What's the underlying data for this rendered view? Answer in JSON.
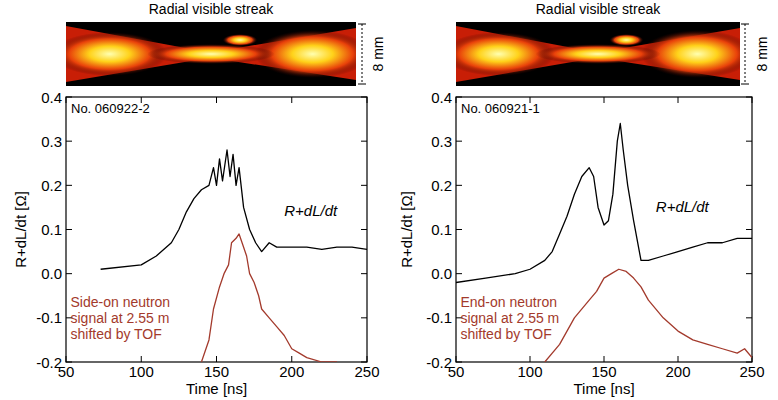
{
  "chart_data": [
    {
      "type": "line",
      "title": "Radial visible streak",
      "scale_label": "8 mm",
      "id_label": "No. 060922-2",
      "xlabel": "Time [ns]",
      "ylabel": "R+dL/dt [Ω]",
      "xlim": [
        50,
        250
      ],
      "ylim": [
        -0.2,
        0.4
      ],
      "xticks": [
        50,
        100,
        150,
        200,
        250
      ],
      "yticks": [
        -0.2,
        -0.1,
        {
          "value": 0,
          "label": "0.0"
        },
        0.1,
        0.2,
        0.3,
        0.4
      ],
      "series": [
        {
          "name": "R+dL/dt",
          "color": "#000000",
          "x": [
            73,
            100,
            110,
            120,
            125,
            130,
            135,
            140,
            145,
            148,
            150,
            152,
            154,
            157,
            159,
            161,
            163,
            165,
            168,
            172,
            176,
            180,
            185,
            190,
            200,
            210,
            220,
            230,
            240,
            250
          ],
          "values": [
            0.01,
            0.02,
            0.04,
            0.07,
            0.1,
            0.14,
            0.17,
            0.19,
            0.2,
            0.24,
            0.2,
            0.26,
            0.21,
            0.28,
            0.22,
            0.27,
            0.2,
            0.24,
            0.15,
            0.1,
            0.07,
            0.05,
            0.07,
            0.06,
            0.06,
            0.06,
            0.055,
            0.06,
            0.06,
            0.055
          ]
        },
        {
          "color": "#a33a2c",
          "x": [
            140,
            145,
            148,
            152,
            155,
            158,
            160,
            163,
            165,
            167,
            170,
            172,
            175,
            178,
            180,
            185,
            190,
            195,
            200,
            205,
            210,
            220,
            230
          ],
          "values": [
            -0.2,
            -0.15,
            -0.08,
            -0.03,
            0.0,
            0.02,
            0.07,
            0.08,
            0.09,
            0.07,
            0.04,
            0.0,
            -0.02,
            -0.05,
            -0.08,
            -0.1,
            -0.12,
            -0.14,
            -0.17,
            -0.18,
            -0.19,
            -0.2,
            -0.2
          ]
        }
      ],
      "annotations": [
        {
          "lines": [
            "Side-on neutron",
            "signal at 2.55 m",
            "shifted by TOF"
          ],
          "color": "#a33a2c"
        }
      ]
    },
    {
      "type": "line",
      "title": "Radial visible streak",
      "scale_label": "8 mm",
      "id_label": "No. 060921-1",
      "xlabel": "Time [ns]",
      "ylabel": "R+dL/dt [Ω]",
      "xlim": [
        50,
        250
      ],
      "ylim": [
        -0.2,
        0.4
      ],
      "xticks": [
        50,
        100,
        150,
        200,
        250
      ],
      "yticks": [
        -0.2,
        -0.1,
        {
          "value": 0,
          "label": "0.0"
        },
        0.1,
        0.2,
        0.3,
        0.4
      ],
      "series": [
        {
          "name": "R+dL/dt",
          "color": "#000000",
          "x": [
            50,
            70,
            90,
            100,
            110,
            115,
            120,
            125,
            130,
            135,
            140,
            143,
            146,
            150,
            153,
            156,
            159,
            161,
            163,
            166,
            170,
            175,
            180,
            190,
            200,
            210,
            220,
            230,
            240,
            250
          ],
          "values": [
            -0.02,
            -0.01,
            0.0,
            0.01,
            0.03,
            0.05,
            0.09,
            0.13,
            0.18,
            0.22,
            0.24,
            0.22,
            0.15,
            0.11,
            0.12,
            0.18,
            0.3,
            0.34,
            0.28,
            0.2,
            0.12,
            0.03,
            0.03,
            0.04,
            0.05,
            0.06,
            0.07,
            0.07,
            0.08,
            0.08
          ]
        },
        {
          "color": "#a33a2c",
          "x": [
            110,
            120,
            130,
            140,
            145,
            150,
            155,
            160,
            165,
            170,
            175,
            180,
            190,
            200,
            210,
            220,
            230,
            240,
            245,
            250
          ],
          "values": [
            -0.2,
            -0.16,
            -0.1,
            -0.06,
            -0.04,
            -0.01,
            0.0,
            0.01,
            0.005,
            -0.01,
            -0.03,
            -0.06,
            -0.1,
            -0.13,
            -0.15,
            -0.16,
            -0.17,
            -0.18,
            -0.17,
            -0.19
          ]
        }
      ],
      "annotations": [
        {
          "lines": [
            "End-on neutron",
            "signal at 2.55 m",
            "shifted by TOF"
          ],
          "color": "#a33a2c"
        }
      ]
    }
  ]
}
